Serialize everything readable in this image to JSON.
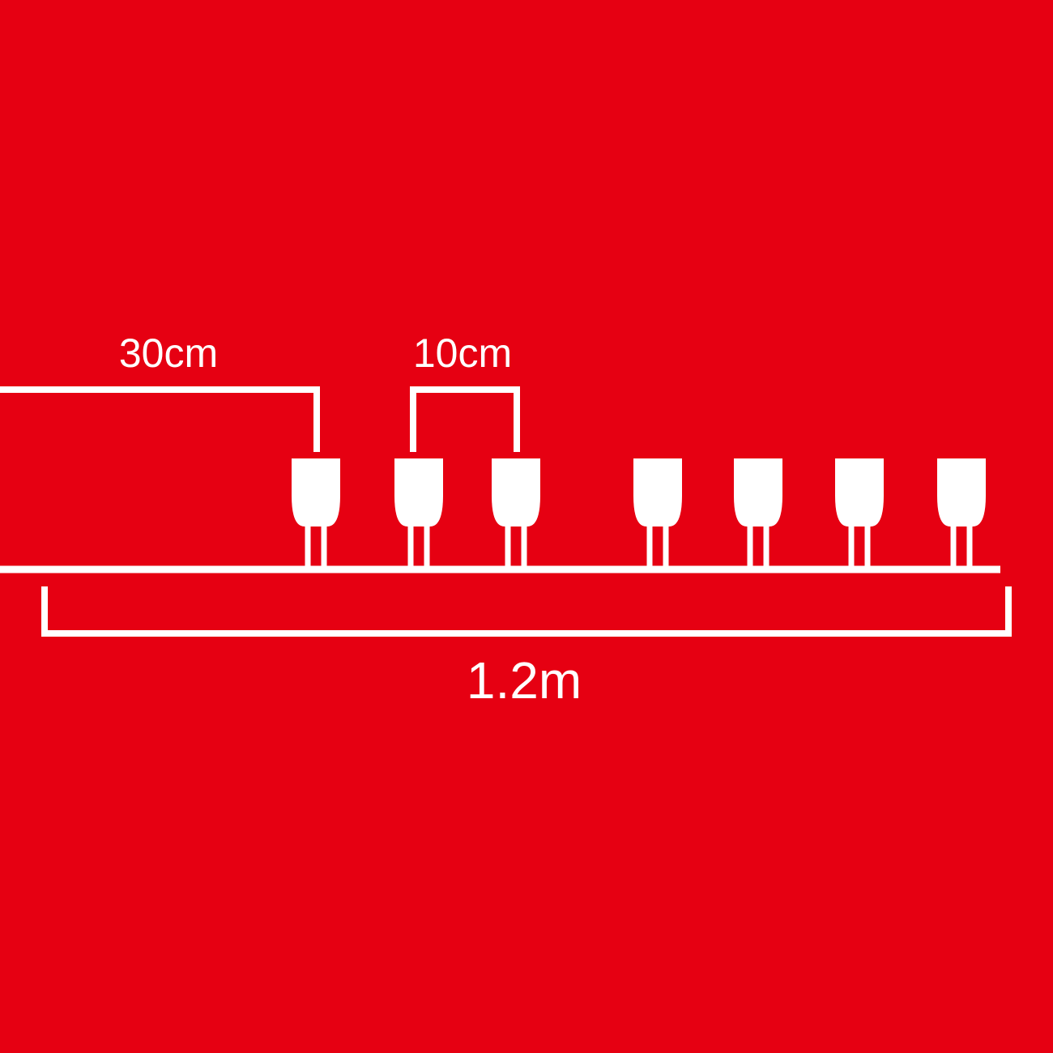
{
  "colors": {
    "background": "#e60012",
    "line": "#ffffff"
  },
  "icons": {
    "bulb": "bulb-icon"
  },
  "diagram": {
    "lead_length_label": "30cm",
    "bulb_spacing_label": "10cm",
    "total_length_label": "1.2m",
    "bulb_count": 7
  }
}
